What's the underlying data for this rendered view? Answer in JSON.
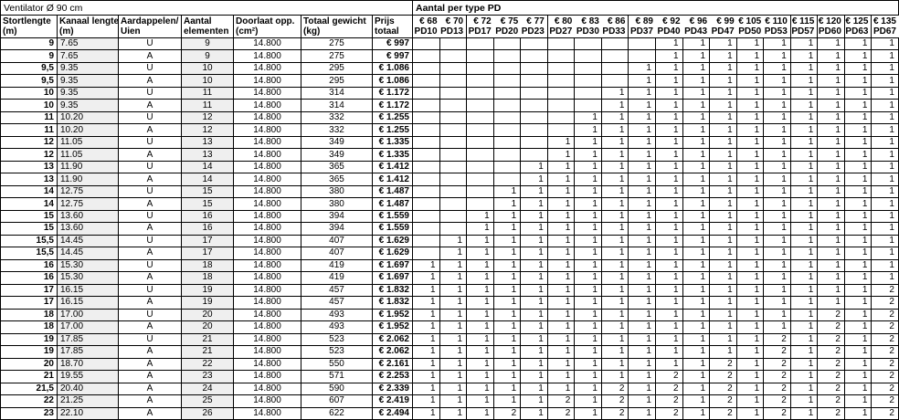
{
  "colors": {
    "grid_border": "#000000",
    "shaded_cell": "#efefef"
  },
  "left_table": {
    "title": "Ventilator Ø 90 cm",
    "columns": [
      {
        "line1": "Stortlengte",
        "line2": "(m)"
      },
      {
        "line1": "Kanaal lengte",
        "line2": "(m)"
      },
      {
        "line1": "Aardappelen/",
        "line2": "Uien"
      },
      {
        "line1": "Aantal",
        "line2": "elementen"
      },
      {
        "line1": "Doorlaat opp.",
        "line2": "(cm²)"
      },
      {
        "line1": "Totaal gewicht",
        "line2": "(kg)"
      },
      {
        "line1": "Prijs",
        "line2": "totaal"
      }
    ]
  },
  "pd_table": {
    "title": "Aantal per type PD",
    "columns": [
      {
        "price": "€ 68",
        "type": "PD10"
      },
      {
        "price": "€ 70",
        "type": "PD13"
      },
      {
        "price": "€ 72",
        "type": "PD17"
      },
      {
        "price": "€ 75",
        "type": "PD20"
      },
      {
        "price": "€ 77",
        "type": "PD23"
      },
      {
        "price": "€ 80",
        "type": "PD27"
      },
      {
        "price": "€ 83",
        "type": "PD30"
      },
      {
        "price": "€ 86",
        "type": "PD33"
      },
      {
        "price": "€ 89",
        "type": "PD37"
      },
      {
        "price": "€ 92",
        "type": "PD40"
      },
      {
        "price": "€ 96",
        "type": "PD43"
      },
      {
        "price": "€ 99",
        "type": "PD47"
      },
      {
        "price": "€ 105",
        "type": "PD50"
      },
      {
        "price": "€ 110",
        "type": "PD53"
      },
      {
        "price": "€ 115",
        "type": "PD57"
      },
      {
        "price": "€ 120",
        "type": "PD60"
      },
      {
        "price": "€ 125",
        "type": "PD63"
      },
      {
        "price": "€ 135",
        "type": "PD67"
      }
    ],
    "group_end_indices": [
      1,
      4,
      7,
      13,
      14,
      15,
      16
    ]
  },
  "rows": [
    {
      "stortlengte": "9",
      "kanaal_lengte": "7.65",
      "soort": "U",
      "aantal_elementen": "9",
      "doorlaat_opp": "14.800",
      "totaal_gewicht": "275",
      "prijs_totaal": "€ 997",
      "pd_counts": [
        "",
        "",
        "",
        "",
        "",
        "",
        "",
        "",
        "",
        "1",
        "1",
        "1",
        "1",
        "1",
        "1",
        "1",
        "1",
        "1"
      ]
    },
    {
      "stortlengte": "9",
      "kanaal_lengte": "7.65",
      "soort": "A",
      "aantal_elementen": "9",
      "doorlaat_opp": "14.800",
      "totaal_gewicht": "275",
      "prijs_totaal": "€ 997",
      "pd_counts": [
        "",
        "",
        "",
        "",
        "",
        "",
        "",
        "",
        "",
        "1",
        "1",
        "1",
        "1",
        "1",
        "1",
        "1",
        "1",
        "1"
      ]
    },
    {
      "stortlengte": "9,5",
      "kanaal_lengte": "9.35",
      "soort": "U",
      "aantal_elementen": "10",
      "doorlaat_opp": "14.800",
      "totaal_gewicht": "295",
      "prijs_totaal": "€ 1.086",
      "pd_counts": [
        "",
        "",
        "",
        "",
        "",
        "",
        "",
        "",
        "1",
        "1",
        "1",
        "1",
        "1",
        "1",
        "1",
        "1",
        "1",
        "1"
      ]
    },
    {
      "stortlengte": "9,5",
      "kanaal_lengte": "9.35",
      "soort": "A",
      "aantal_elementen": "10",
      "doorlaat_opp": "14.800",
      "totaal_gewicht": "295",
      "prijs_totaal": "€ 1.086",
      "pd_counts": [
        "",
        "",
        "",
        "",
        "",
        "",
        "",
        "",
        "1",
        "1",
        "1",
        "1",
        "1",
        "1",
        "1",
        "1",
        "1",
        "1"
      ]
    },
    {
      "stortlengte": "10",
      "kanaal_lengte": "9.35",
      "soort": "U",
      "aantal_elementen": "11",
      "doorlaat_opp": "14.800",
      "totaal_gewicht": "314",
      "prijs_totaal": "€ 1.172",
      "pd_counts": [
        "",
        "",
        "",
        "",
        "",
        "",
        "",
        "1",
        "1",
        "1",
        "1",
        "1",
        "1",
        "1",
        "1",
        "1",
        "1",
        "1"
      ]
    },
    {
      "stortlengte": "10",
      "kanaal_lengte": "9.35",
      "soort": "A",
      "aantal_elementen": "11",
      "doorlaat_opp": "14.800",
      "totaal_gewicht": "314",
      "prijs_totaal": "€ 1.172",
      "pd_counts": [
        "",
        "",
        "",
        "",
        "",
        "",
        "",
        "1",
        "1",
        "1",
        "1",
        "1",
        "1",
        "1",
        "1",
        "1",
        "1",
        "1"
      ]
    },
    {
      "stortlengte": "11",
      "kanaal_lengte": "10.20",
      "soort": "U",
      "aantal_elementen": "12",
      "doorlaat_opp": "14.800",
      "totaal_gewicht": "332",
      "prijs_totaal": "€ 1.255",
      "pd_counts": [
        "",
        "",
        "",
        "",
        "",
        "",
        "1",
        "1",
        "1",
        "1",
        "1",
        "1",
        "1",
        "1",
        "1",
        "1",
        "1",
        "1"
      ]
    },
    {
      "stortlengte": "11",
      "kanaal_lengte": "10.20",
      "soort": "A",
      "aantal_elementen": "12",
      "doorlaat_opp": "14.800",
      "totaal_gewicht": "332",
      "prijs_totaal": "€ 1.255",
      "pd_counts": [
        "",
        "",
        "",
        "",
        "",
        "",
        "1",
        "1",
        "1",
        "1",
        "1",
        "1",
        "1",
        "1",
        "1",
        "1",
        "1",
        "1"
      ]
    },
    {
      "stortlengte": "12",
      "kanaal_lengte": "11.05",
      "soort": "U",
      "aantal_elementen": "13",
      "doorlaat_opp": "14.800",
      "totaal_gewicht": "349",
      "prijs_totaal": "€ 1.335",
      "pd_counts": [
        "",
        "",
        "",
        "",
        "",
        "1",
        "1",
        "1",
        "1",
        "1",
        "1",
        "1",
        "1",
        "1",
        "1",
        "1",
        "1",
        "1"
      ]
    },
    {
      "stortlengte": "12",
      "kanaal_lengte": "11.05",
      "soort": "A",
      "aantal_elementen": "13",
      "doorlaat_opp": "14.800",
      "totaal_gewicht": "349",
      "prijs_totaal": "€ 1.335",
      "pd_counts": [
        "",
        "",
        "",
        "",
        "",
        "1",
        "1",
        "1",
        "1",
        "1",
        "1",
        "1",
        "1",
        "1",
        "1",
        "1",
        "1",
        "1"
      ]
    },
    {
      "stortlengte": "13",
      "kanaal_lengte": "11.90",
      "soort": "U",
      "aantal_elementen": "14",
      "doorlaat_opp": "14.800",
      "totaal_gewicht": "365",
      "prijs_totaal": "€ 1.412",
      "pd_counts": [
        "",
        "",
        "",
        "",
        "1",
        "1",
        "1",
        "1",
        "1",
        "1",
        "1",
        "1",
        "1",
        "1",
        "1",
        "1",
        "1",
        "1"
      ]
    },
    {
      "stortlengte": "13",
      "kanaal_lengte": "11.90",
      "soort": "A",
      "aantal_elementen": "14",
      "doorlaat_opp": "14.800",
      "totaal_gewicht": "365",
      "prijs_totaal": "€ 1.412",
      "pd_counts": [
        "",
        "",
        "",
        "",
        "1",
        "1",
        "1",
        "1",
        "1",
        "1",
        "1",
        "1",
        "1",
        "1",
        "1",
        "1",
        "1",
        "1"
      ]
    },
    {
      "stortlengte": "14",
      "kanaal_lengte": "12.75",
      "soort": "U",
      "aantal_elementen": "15",
      "doorlaat_opp": "14.800",
      "totaal_gewicht": "380",
      "prijs_totaal": "€ 1.487",
      "pd_counts": [
        "",
        "",
        "",
        "1",
        "1",
        "1",
        "1",
        "1",
        "1",
        "1",
        "1",
        "1",
        "1",
        "1",
        "1",
        "1",
        "1",
        "1"
      ]
    },
    {
      "stortlengte": "14",
      "kanaal_lengte": "12.75",
      "soort": "A",
      "aantal_elementen": "15",
      "doorlaat_opp": "14.800",
      "totaal_gewicht": "380",
      "prijs_totaal": "€ 1.487",
      "pd_counts": [
        "",
        "",
        "",
        "1",
        "1",
        "1",
        "1",
        "1",
        "1",
        "1",
        "1",
        "1",
        "1",
        "1",
        "1",
        "1",
        "1",
        "1"
      ]
    },
    {
      "stortlengte": "15",
      "kanaal_lengte": "13.60",
      "soort": "U",
      "aantal_elementen": "16",
      "doorlaat_opp": "14.800",
      "totaal_gewicht": "394",
      "prijs_totaal": "€ 1.559",
      "pd_counts": [
        "",
        "",
        "1",
        "1",
        "1",
        "1",
        "1",
        "1",
        "1",
        "1",
        "1",
        "1",
        "1",
        "1",
        "1",
        "1",
        "1",
        "1"
      ]
    },
    {
      "stortlengte": "15",
      "kanaal_lengte": "13.60",
      "soort": "A",
      "aantal_elementen": "16",
      "doorlaat_opp": "14.800",
      "totaal_gewicht": "394",
      "prijs_totaal": "€ 1.559",
      "pd_counts": [
        "",
        "",
        "1",
        "1",
        "1",
        "1",
        "1",
        "1",
        "1",
        "1",
        "1",
        "1",
        "1",
        "1",
        "1",
        "1",
        "1",
        "1"
      ]
    },
    {
      "stortlengte": "15,5",
      "kanaal_lengte": "14.45",
      "soort": "U",
      "aantal_elementen": "17",
      "doorlaat_opp": "14.800",
      "totaal_gewicht": "407",
      "prijs_totaal": "€ 1.629",
      "pd_counts": [
        "",
        "1",
        "1",
        "1",
        "1",
        "1",
        "1",
        "1",
        "1",
        "1",
        "1",
        "1",
        "1",
        "1",
        "1",
        "1",
        "1",
        "1"
      ]
    },
    {
      "stortlengte": "15,5",
      "kanaal_lengte": "14.45",
      "soort": "A",
      "aantal_elementen": "17",
      "doorlaat_opp": "14.800",
      "totaal_gewicht": "407",
      "prijs_totaal": "€ 1.629",
      "pd_counts": [
        "",
        "1",
        "1",
        "1",
        "1",
        "1",
        "1",
        "1",
        "1",
        "1",
        "1",
        "1",
        "1",
        "1",
        "1",
        "1",
        "1",
        "1"
      ]
    },
    {
      "stortlengte": "16",
      "kanaal_lengte": "15.30",
      "soort": "U",
      "aantal_elementen": "18",
      "doorlaat_opp": "14.800",
      "totaal_gewicht": "419",
      "prijs_totaal": "€ 1.697",
      "pd_counts": [
        "1",
        "1",
        "1",
        "1",
        "1",
        "1",
        "1",
        "1",
        "1",
        "1",
        "1",
        "1",
        "1",
        "1",
        "1",
        "1",
        "1",
        "1"
      ]
    },
    {
      "stortlengte": "16",
      "kanaal_lengte": "15.30",
      "soort": "A",
      "aantal_elementen": "18",
      "doorlaat_opp": "14.800",
      "totaal_gewicht": "419",
      "prijs_totaal": "€ 1.697",
      "pd_counts": [
        "1",
        "1",
        "1",
        "1",
        "1",
        "1",
        "1",
        "1",
        "1",
        "1",
        "1",
        "1",
        "1",
        "1",
        "1",
        "1",
        "1",
        "1"
      ]
    },
    {
      "stortlengte": "17",
      "kanaal_lengte": "16.15",
      "soort": "U",
      "aantal_elementen": "19",
      "doorlaat_opp": "14.800",
      "totaal_gewicht": "457",
      "prijs_totaal": "€ 1.832",
      "pd_counts": [
        "1",
        "1",
        "1",
        "1",
        "1",
        "1",
        "1",
        "1",
        "1",
        "1",
        "1",
        "1",
        "1",
        "1",
        "1",
        "1",
        "1",
        "2"
      ]
    },
    {
      "stortlengte": "17",
      "kanaal_lengte": "16.15",
      "soort": "A",
      "aantal_elementen": "19",
      "doorlaat_opp": "14.800",
      "totaal_gewicht": "457",
      "prijs_totaal": "€ 1.832",
      "pd_counts": [
        "1",
        "1",
        "1",
        "1",
        "1",
        "1",
        "1",
        "1",
        "1",
        "1",
        "1",
        "1",
        "1",
        "1",
        "1",
        "1",
        "1",
        "2"
      ]
    },
    {
      "stortlengte": "18",
      "kanaal_lengte": "17.00",
      "soort": "U",
      "aantal_elementen": "20",
      "doorlaat_opp": "14.800",
      "totaal_gewicht": "493",
      "prijs_totaal": "€ 1.952",
      "pd_counts": [
        "1",
        "1",
        "1",
        "1",
        "1",
        "1",
        "1",
        "1",
        "1",
        "1",
        "1",
        "1",
        "1",
        "1",
        "1",
        "2",
        "1",
        "2"
      ]
    },
    {
      "stortlengte": "18",
      "kanaal_lengte": "17.00",
      "soort": "A",
      "aantal_elementen": "20",
      "doorlaat_opp": "14.800",
      "totaal_gewicht": "493",
      "prijs_totaal": "€ 1.952",
      "pd_counts": [
        "1",
        "1",
        "1",
        "1",
        "1",
        "1",
        "1",
        "1",
        "1",
        "1",
        "1",
        "1",
        "1",
        "1",
        "1",
        "2",
        "1",
        "2"
      ]
    },
    {
      "stortlengte": "19",
      "kanaal_lengte": "17.85",
      "soort": "U",
      "aantal_elementen": "21",
      "doorlaat_opp": "14.800",
      "totaal_gewicht": "523",
      "prijs_totaal": "€ 2.062",
      "pd_counts": [
        "1",
        "1",
        "1",
        "1",
        "1",
        "1",
        "1",
        "1",
        "1",
        "1",
        "1",
        "1",
        "1",
        "2",
        "1",
        "2",
        "1",
        "2"
      ]
    },
    {
      "stortlengte": "19",
      "kanaal_lengte": "17.85",
      "soort": "A",
      "aantal_elementen": "21",
      "doorlaat_opp": "14.800",
      "totaal_gewicht": "523",
      "prijs_totaal": "€ 2.062",
      "pd_counts": [
        "1",
        "1",
        "1",
        "1",
        "1",
        "1",
        "1",
        "1",
        "1",
        "1",
        "1",
        "1",
        "1",
        "2",
        "1",
        "2",
        "1",
        "2"
      ]
    },
    {
      "stortlengte": "20",
      "kanaal_lengte": "18.70",
      "soort": "A",
      "aantal_elementen": "22",
      "doorlaat_opp": "14.800",
      "totaal_gewicht": "550",
      "prijs_totaal": "€ 2.161",
      "pd_counts": [
        "1",
        "1",
        "1",
        "1",
        "1",
        "1",
        "1",
        "1",
        "1",
        "1",
        "1",
        "2",
        "1",
        "2",
        "1",
        "2",
        "1",
        "2"
      ]
    },
    {
      "stortlengte": "21",
      "kanaal_lengte": "19.55",
      "soort": "A",
      "aantal_elementen": "23",
      "doorlaat_opp": "14.800",
      "totaal_gewicht": "571",
      "prijs_totaal": "€ 2.253",
      "pd_counts": [
        "1",
        "1",
        "1",
        "1",
        "1",
        "1",
        "1",
        "1",
        "1",
        "2",
        "1",
        "2",
        "1",
        "2",
        "1",
        "2",
        "1",
        "2"
      ]
    },
    {
      "stortlengte": "21,5",
      "kanaal_lengte": "20.40",
      "soort": "A",
      "aantal_elementen": "24",
      "doorlaat_opp": "14.800",
      "totaal_gewicht": "590",
      "prijs_totaal": "€ 2.339",
      "pd_counts": [
        "1",
        "1",
        "1",
        "1",
        "1",
        "1",
        "1",
        "2",
        "1",
        "2",
        "1",
        "2",
        "1",
        "2",
        "1",
        "2",
        "1",
        "2"
      ]
    },
    {
      "stortlengte": "22",
      "kanaal_lengte": "21.25",
      "soort": "A",
      "aantal_elementen": "25",
      "doorlaat_opp": "14.800",
      "totaal_gewicht": "607",
      "prijs_totaal": "€ 2.419",
      "pd_counts": [
        "1",
        "1",
        "1",
        "1",
        "1",
        "2",
        "1",
        "2",
        "1",
        "2",
        "1",
        "2",
        "1",
        "2",
        "1",
        "2",
        "1",
        "2"
      ]
    },
    {
      "stortlengte": "23",
      "kanaal_lengte": "22.10",
      "soort": "A",
      "aantal_elementen": "26",
      "doorlaat_opp": "14.800",
      "totaal_gewicht": "622",
      "prijs_totaal": "€ 2.494",
      "pd_counts": [
        "1",
        "1",
        "1",
        "2",
        "1",
        "2",
        "1",
        "2",
        "1",
        "2",
        "1",
        "2",
        "1",
        "2",
        "1",
        "2",
        "1",
        "2"
      ]
    }
  ]
}
